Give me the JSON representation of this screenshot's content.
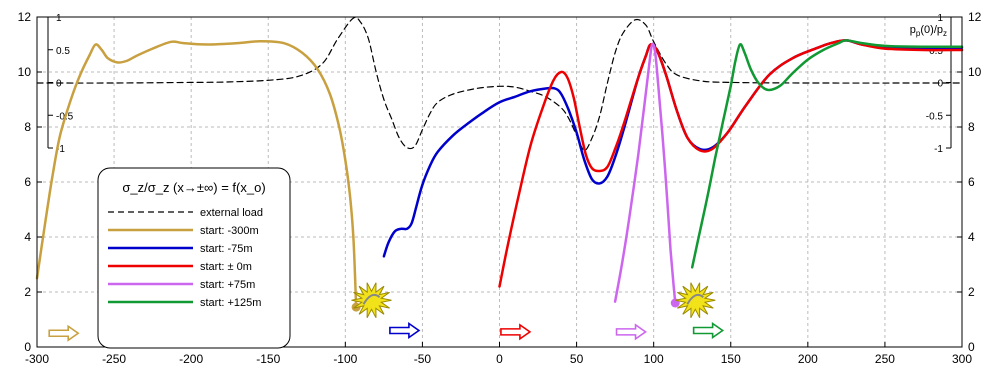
{
  "chart_data": {
    "type": "line",
    "x_ticks": [
      -300,
      -250,
      -200,
      -150,
      -100,
      -50,
      0,
      50,
      100,
      150,
      200,
      250,
      300
    ],
    "y_ticks": [
      0,
      2,
      4,
      6,
      8,
      10,
      12
    ],
    "inner_ticks": [
      "1",
      "0.5",
      "0",
      "-0.5",
      "-1"
    ],
    "right_label": "p_p(0)/p_z",
    "xlim": [
      -300,
      300
    ],
    "ylim": [
      0,
      12
    ],
    "grid": true,
    "legend": {
      "title": "σ_z/σ_z (x→±∞) = f(x_o)",
      "items": [
        {
          "label": "external load",
          "color": "#000000",
          "dash": true
        },
        {
          "label": "start: -300m",
          "color": "#C8A040",
          "dash": false
        },
        {
          "label": "start: -75m",
          "color": "#0000CC",
          "dash": false
        },
        {
          "label": "start: ± 0m",
          "color": "#EE0000",
          "dash": false
        },
        {
          "label": "start: +75m",
          "color": "#CC66EE",
          "dash": false
        },
        {
          "label": "start: +125m",
          "color": "#119933",
          "dash": false
        }
      ]
    },
    "series": [
      {
        "name": "external load",
        "color": "#000000",
        "dash": true,
        "points": [
          [
            -300,
            9.6
          ],
          [
            -250,
            9.6
          ],
          [
            -200,
            9.62
          ],
          [
            -175,
            9.64
          ],
          [
            -150,
            9.7
          ],
          [
            -130,
            9.85
          ],
          [
            -115,
            10.3
          ],
          [
            -105,
            11.2
          ],
          [
            -95,
            11.95
          ],
          [
            -90,
            11.8
          ],
          [
            -85,
            11.2
          ],
          [
            -80,
            10.0
          ],
          [
            -75,
            9.0
          ],
          [
            -70,
            8.3
          ],
          [
            -65,
            7.6
          ],
          [
            -60,
            7.25
          ],
          [
            -55,
            7.3
          ],
          [
            -50,
            7.9
          ],
          [
            -45,
            8.5
          ],
          [
            -40,
            8.9
          ],
          [
            -30,
            9.2
          ],
          [
            -15,
            9.4
          ],
          [
            0,
            9.48
          ],
          [
            10,
            9.45
          ],
          [
            20,
            9.3
          ],
          [
            30,
            9.1
          ],
          [
            40,
            8.7
          ],
          [
            45,
            8.3
          ],
          [
            50,
            7.7
          ],
          [
            55,
            7.15
          ],
          [
            60,
            7.6
          ],
          [
            65,
            8.4
          ],
          [
            70,
            9.6
          ],
          [
            75,
            10.7
          ],
          [
            80,
            11.4
          ],
          [
            88,
            11.9
          ],
          [
            95,
            11.7
          ],
          [
            100,
            11.1
          ],
          [
            108,
            10.3
          ],
          [
            115,
            9.9
          ],
          [
            130,
            9.68
          ],
          [
            150,
            9.62
          ],
          [
            200,
            9.6
          ],
          [
            300,
            9.6
          ]
        ]
      },
      {
        "name": "start: -300m",
        "color": "#C8A040",
        "dash": false,
        "points": [
          [
            -300,
            2.5
          ],
          [
            -295,
            4.4
          ],
          [
            -290,
            6.2
          ],
          [
            -285,
            7.7
          ],
          [
            -278,
            9.0
          ],
          [
            -272,
            9.9
          ],
          [
            -266,
            10.6
          ],
          [
            -262,
            11.0
          ],
          [
            -258,
            10.8
          ],
          [
            -254,
            10.5
          ],
          [
            -248,
            10.35
          ],
          [
            -242,
            10.4
          ],
          [
            -235,
            10.6
          ],
          [
            -225,
            10.85
          ],
          [
            -213,
            11.1
          ],
          [
            -205,
            11.05
          ],
          [
            -190,
            11.0
          ],
          [
            -170,
            11.05
          ],
          [
            -155,
            11.12
          ],
          [
            -140,
            11.05
          ],
          [
            -128,
            10.7
          ],
          [
            -118,
            10.1
          ],
          [
            -110,
            9.2
          ],
          [
            -104,
            8.0
          ],
          [
            -100,
            6.8
          ],
          [
            -97,
            5.5
          ],
          [
            -95,
            4.2
          ],
          [
            -94,
            3.0
          ],
          [
            -93,
            1.45
          ]
        ]
      },
      {
        "name": "start: -75m",
        "color": "#0000CC",
        "dash": false,
        "points": [
          [
            -75,
            3.3
          ],
          [
            -72,
            3.8
          ],
          [
            -68,
            4.2
          ],
          [
            -64,
            4.3
          ],
          [
            -60,
            4.3
          ],
          [
            -57,
            4.5
          ],
          [
            -54,
            5.1
          ],
          [
            -50,
            5.9
          ],
          [
            -45,
            6.6
          ],
          [
            -40,
            7.1
          ],
          [
            -30,
            7.7
          ],
          [
            -20,
            8.15
          ],
          [
            -10,
            8.55
          ],
          [
            0,
            8.9
          ],
          [
            10,
            9.1
          ],
          [
            20,
            9.3
          ],
          [
            30,
            9.4
          ],
          [
            36,
            9.4
          ],
          [
            40,
            9.2
          ],
          [
            45,
            8.6
          ],
          [
            50,
            7.8
          ],
          [
            55,
            6.8
          ],
          [
            60,
            6.1
          ],
          [
            65,
            5.95
          ],
          [
            70,
            6.2
          ],
          [
            75,
            6.9
          ],
          [
            80,
            7.8
          ],
          [
            85,
            8.8
          ],
          [
            90,
            9.8
          ],
          [
            95,
            10.6
          ],
          [
            98,
            11.0
          ],
          [
            102,
            10.8
          ],
          [
            108,
            9.9
          ],
          [
            115,
            8.6
          ],
          [
            122,
            7.6
          ],
          [
            130,
            7.2
          ],
          [
            138,
            7.25
          ],
          [
            148,
            7.8
          ],
          [
            160,
            8.8
          ],
          [
            175,
            9.9
          ],
          [
            190,
            10.5
          ],
          [
            205,
            10.85
          ],
          [
            215,
            11.05
          ],
          [
            225,
            11.15
          ],
          [
            235,
            11.0
          ],
          [
            250,
            10.9
          ],
          [
            275,
            10.88
          ],
          [
            300,
            10.88
          ]
        ]
      },
      {
        "name": "start: ± 0m",
        "color": "#EE0000",
        "dash": false,
        "points": [
          [
            0,
            2.2
          ],
          [
            5,
            3.6
          ],
          [
            12,
            5.4
          ],
          [
            20,
            7.3
          ],
          [
            28,
            8.7
          ],
          [
            35,
            9.7
          ],
          [
            40,
            10.0
          ],
          [
            44,
            9.8
          ],
          [
            48,
            9.1
          ],
          [
            52,
            8.0
          ],
          [
            56,
            7.0
          ],
          [
            60,
            6.5
          ],
          [
            65,
            6.4
          ],
          [
            70,
            6.55
          ],
          [
            75,
            7.2
          ],
          [
            80,
            8.0
          ],
          [
            85,
            8.9
          ],
          [
            90,
            9.8
          ],
          [
            95,
            10.6
          ],
          [
            98,
            11.0
          ],
          [
            102,
            10.8
          ],
          [
            108,
            9.9
          ],
          [
            115,
            8.6
          ],
          [
            122,
            7.6
          ],
          [
            130,
            7.15
          ],
          [
            138,
            7.2
          ],
          [
            148,
            7.8
          ],
          [
            160,
            8.8
          ],
          [
            175,
            9.9
          ],
          [
            190,
            10.5
          ],
          [
            205,
            10.85
          ],
          [
            215,
            11.05
          ],
          [
            225,
            11.15
          ],
          [
            235,
            11.0
          ],
          [
            250,
            10.85
          ],
          [
            275,
            10.8
          ],
          [
            300,
            10.8
          ]
        ]
      },
      {
        "name": "start: +75m",
        "color": "#CC66EE",
        "dash": false,
        "points": [
          [
            75,
            1.65
          ],
          [
            80,
            3.2
          ],
          [
            85,
            5.0
          ],
          [
            90,
            7.0
          ],
          [
            94,
            8.8
          ],
          [
            97,
            10.2
          ],
          [
            99,
            11.0
          ],
          [
            101,
            10.7
          ],
          [
            103,
            9.5
          ],
          [
            106,
            7.5
          ],
          [
            109,
            5.2
          ],
          [
            111,
            3.5
          ],
          [
            113,
            2.2
          ],
          [
            114,
            1.6
          ]
        ]
      },
      {
        "name": "start: +125m",
        "color": "#119933",
        "dash": false,
        "points": [
          [
            125,
            2.9
          ],
          [
            130,
            4.2
          ],
          [
            135,
            5.5
          ],
          [
            140,
            6.9
          ],
          [
            145,
            8.2
          ],
          [
            150,
            9.5
          ],
          [
            153,
            10.4
          ],
          [
            156,
            11.0
          ],
          [
            159,
            10.7
          ],
          [
            163,
            10.1
          ],
          [
            168,
            9.6
          ],
          [
            174,
            9.35
          ],
          [
            182,
            9.5
          ],
          [
            190,
            9.95
          ],
          [
            200,
            10.45
          ],
          [
            210,
            10.8
          ],
          [
            220,
            11.05
          ],
          [
            225,
            11.15
          ],
          [
            235,
            11.05
          ],
          [
            250,
            10.95
          ],
          [
            275,
            10.92
          ],
          [
            300,
            10.92
          ]
        ]
      }
    ],
    "markers": [
      {
        "x": -93,
        "y": 1.45,
        "color": "#C8A040"
      },
      {
        "x": 114,
        "y": 1.6,
        "color": "#CC66EE"
      }
    ],
    "direction_arrows": [
      {
        "x": -283,
        "y": 0.5,
        "color": "#C8A040"
      },
      {
        "x": -62,
        "y": 0.6,
        "color": "#0000CC"
      },
      {
        "x": 10,
        "y": 0.55,
        "color": "#EE0000"
      },
      {
        "x": 85,
        "y": 0.55,
        "color": "#CC66EE"
      },
      {
        "x": 135,
        "y": 0.6,
        "color": "#119933"
      }
    ],
    "bursts": [
      {
        "x": -83,
        "y": 1.7
      },
      {
        "x": 127,
        "y": 1.7
      }
    ]
  }
}
